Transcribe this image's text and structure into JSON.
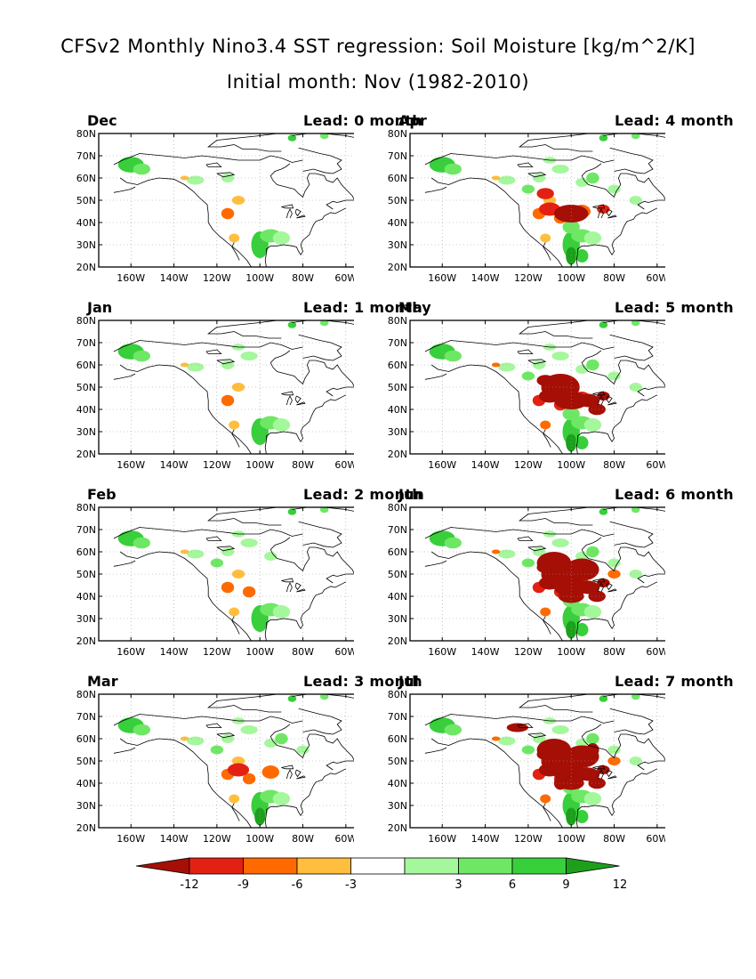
{
  "title": {
    "line1": "CFSv2 Monthly Nino3.4 SST regression: Soil Moisture [kg/m^2/K]",
    "line2": "Initial month: Nov (1982-2010)"
  },
  "axes": {
    "lat_labels": [
      "80N",
      "70N",
      "60N",
      "50N",
      "40N",
      "30N",
      "20N"
    ],
    "lon_labels": [
      "160W",
      "140W",
      "120W",
      "100W",
      "80W",
      "60W"
    ]
  },
  "panels": [
    {
      "month": "Dec",
      "lead": "Lead: 0 month",
      "intensity": 0
    },
    {
      "month": "Apr",
      "lead": "Lead: 4 month",
      "intensity": 4
    },
    {
      "month": "Jan",
      "lead": "Lead: 1 month",
      "intensity": 1
    },
    {
      "month": "May",
      "lead": "Lead: 5 month",
      "intensity": 5
    },
    {
      "month": "Feb",
      "lead": "Lead: 2 month",
      "intensity": 2
    },
    {
      "month": "Jun",
      "lead": "Lead: 6 month",
      "intensity": 6
    },
    {
      "month": "Mar",
      "lead": "Lead: 3 month",
      "intensity": 3
    },
    {
      "month": "Jul",
      "lead": "Lead: 7 month",
      "intensity": 7
    }
  ],
  "colorbar": {
    "labels": [
      "-12",
      "-9",
      "-6",
      "-3",
      "3",
      "6",
      "9",
      "12"
    ],
    "colors": [
      "#a50f05",
      "#e32112",
      "#ff6a00",
      "#ffbe3d",
      "#ffffff",
      "#a5f79c",
      "#6ee765",
      "#37cf3a",
      "#1ca01c"
    ]
  },
  "colors": {
    "land_green": "#37cf3a",
    "light_green": "#a5f79c",
    "mid_green": "#6ee765",
    "dark_green": "#1ca01c",
    "dark_red": "#a50f05",
    "red": "#e32112",
    "orange": "#ff6a00",
    "light_orange": "#ffbe3d"
  }
}
